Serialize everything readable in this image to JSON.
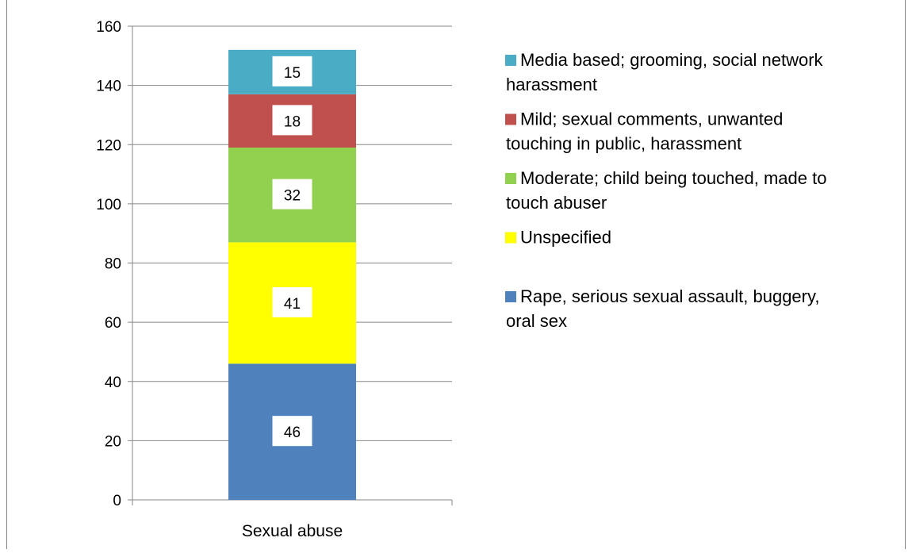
{
  "chart_data": {
    "type": "bar",
    "stacked": true,
    "categories": [
      "Sexual abuse"
    ],
    "ylim": [
      0,
      160
    ],
    "yticks": [
      "0",
      "20",
      "40",
      "60",
      "80",
      "100",
      "120",
      "140",
      "160"
    ],
    "grid": true,
    "legend_position": "right",
    "series": [
      {
        "name": "Rape, serious sexual assault, buggery, oral sex",
        "values": [
          46
        ],
        "label": "46",
        "color": "#4F81BD",
        "legend_lines": [
          "Rape, serious sexual assault, buggery,",
          "oral sex"
        ]
      },
      {
        "name": "Unspecified",
        "values": [
          41
        ],
        "label": "41",
        "color": "#FFFF00",
        "legend_lines": [
          "Unspecified"
        ]
      },
      {
        "name": "Moderate; child being touched, made to touch abuser",
        "values": [
          32
        ],
        "label": "32",
        "color": "#92D050",
        "legend_lines": [
          "Moderate; child being touched, made to",
          "touch abuser"
        ]
      },
      {
        "name": "Mild; sexual comments, unwanted touching in public, harassment",
        "values": [
          18
        ],
        "label": "18",
        "color": "#C0504D",
        "legend_lines": [
          "Mild; sexual comments, unwanted",
          "touching in public, harassment"
        ]
      },
      {
        "name": "Media based; grooming, social network harassment",
        "values": [
          15
        ],
        "label": "15",
        "color": "#4BACC6",
        "legend_lines": [
          "Media based; grooming, social network",
          "harassment"
        ]
      }
    ]
  }
}
